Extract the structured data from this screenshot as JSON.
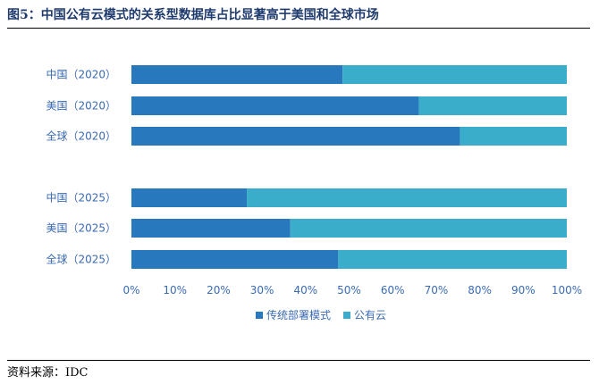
{
  "figure": {
    "title": "图5：中国公有云模式的关系型数据库占比显著高于美国和全球市场",
    "source": "资料来源：IDC"
  },
  "colors": {
    "traditional": "#2878bd",
    "public_cloud": "#3aadca"
  },
  "chart_data": {
    "type": "bar",
    "orientation": "horizontal",
    "stacked": "percent",
    "categories": [
      "中国（2020）",
      "美国（2020）",
      "全球（2020）",
      "中国（2025）",
      "美国（2025）",
      "全球（2025）"
    ],
    "series": [
      {
        "name": "传统部署模式",
        "values": [
          48.5,
          66,
          75.5,
          26.5,
          36.5,
          47.5
        ]
      },
      {
        "name": "公有云",
        "values": [
          51.5,
          34,
          24.5,
          73.5,
          63.5,
          52.5
        ]
      }
    ],
    "xlim": [
      0,
      100
    ],
    "xticks": [
      "0%",
      "10%",
      "20%",
      "30%",
      "40%",
      "50%",
      "60%",
      "70%",
      "80%",
      "90%",
      "100%"
    ],
    "legend": "bottom",
    "grid": false
  }
}
